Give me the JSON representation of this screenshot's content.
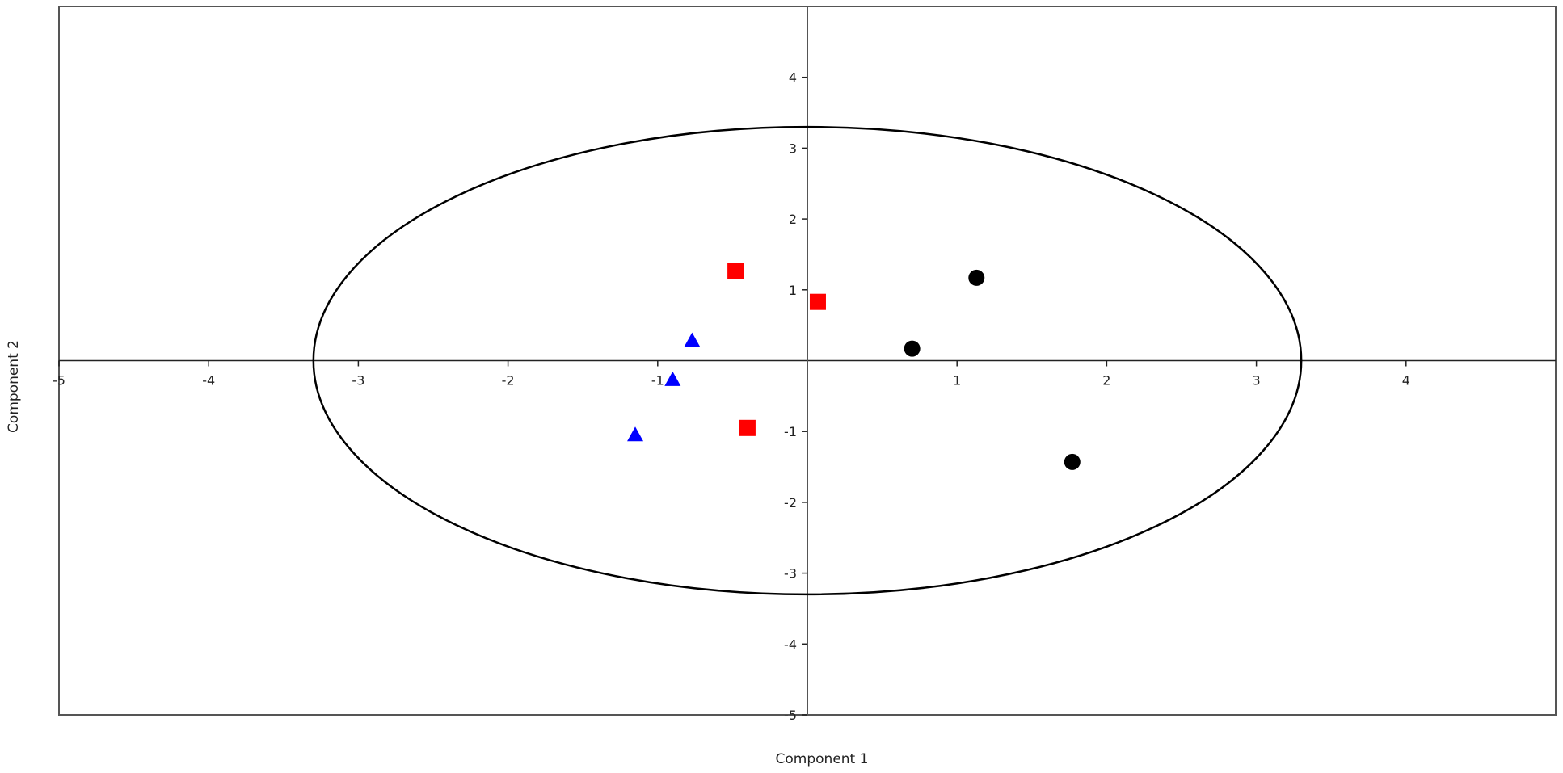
{
  "chart_data": {
    "type": "scatter",
    "title": "",
    "xlabel": "Component 1",
    "ylabel": "Component 2",
    "xlim": [
      -5,
      5
    ],
    "ylim": [
      -5,
      5
    ],
    "x_ticks": [
      -5,
      -4,
      -3,
      -2,
      -1,
      1,
      2,
      3,
      4
    ],
    "y_ticks": [
      -5,
      -4,
      -3,
      -2,
      -1,
      1,
      2,
      3,
      4
    ],
    "grid": false,
    "ellipse": {
      "center": [
        0,
        0
      ],
      "rx": 3.3,
      "ry": 3.3,
      "color": "#000000"
    },
    "series": [
      {
        "marker": "circle",
        "color": "#000000",
        "points": [
          [
            0.7,
            0.17
          ],
          [
            1.13,
            1.17
          ],
          [
            1.77,
            -1.43
          ]
        ]
      },
      {
        "marker": "square",
        "color": "#ff0000",
        "points": [
          [
            -0.48,
            1.27
          ],
          [
            0.07,
            0.83
          ],
          [
            -0.4,
            -0.95
          ]
        ]
      },
      {
        "marker": "triangle",
        "color": "#0000ff",
        "points": [
          [
            -0.77,
            0.27
          ],
          [
            -0.9,
            -0.28
          ],
          [
            -1.15,
            -1.06
          ]
        ]
      }
    ]
  }
}
